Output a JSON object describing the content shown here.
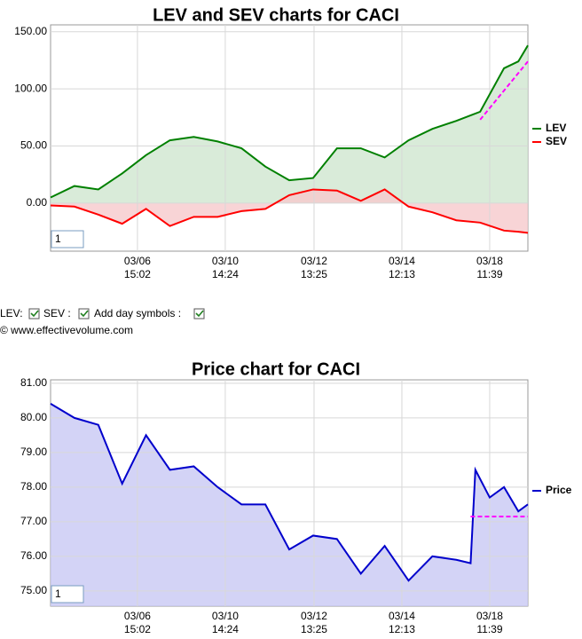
{
  "chart_data": [
    {
      "type": "line",
      "title": "LEV and SEV charts for CACI",
      "x": [
        0,
        5,
        10,
        15,
        20,
        25,
        30,
        35,
        40,
        45,
        50,
        55,
        60,
        65,
        70,
        75,
        80,
        85,
        90,
        95,
        98,
        100
      ],
      "series": [
        {
          "name": "LEV",
          "color": "#008000",
          "fill": "#cfe6cf",
          "area": true,
          "values": [
            5,
            15,
            12,
            26,
            42,
            55,
            58,
            54,
            48,
            32,
            20,
            22,
            48,
            48,
            40,
            55,
            65,
            72,
            80,
            118,
            124,
            138
          ]
        },
        {
          "name": "SEV",
          "color": "#ff0000",
          "fill": "#f6c9cc",
          "area": true,
          "values": [
            -2,
            -3,
            -10,
            -18,
            -5,
            -20,
            -12,
            -12,
            -7,
            -5,
            7,
            12,
            11,
            2,
            12,
            -3,
            -8,
            -15,
            -17,
            -24,
            -25,
            -26
          ]
        }
      ],
      "trend_line": {
        "x": [
          90,
          100
        ],
        "values": [
          73,
          124
        ],
        "color": "#ff00ff"
      },
      "xlim": [
        0,
        100
      ],
      "xticks": [
        {
          "value": 18.2,
          "label": "03/06 15:02"
        },
        {
          "value": 36.6,
          "label": "03/10 14:24"
        },
        {
          "value": 55.2,
          "label": "03/12 13:25"
        },
        {
          "value": 73.6,
          "label": "03/14 12:13"
        },
        {
          "value": 92.0,
          "label": "03/18 11:39"
        }
      ],
      "ylim": [
        -42,
        156
      ],
      "yticks": [
        {
          "value": 0,
          "label": "0.00"
        },
        {
          "value": 50,
          "label": "50.00"
        },
        {
          "value": 100,
          "label": "100.00"
        },
        {
          "value": 150,
          "label": "150.00"
        }
      ],
      "grid": true,
      "input_value": "1"
    },
    {
      "type": "line",
      "title": "Price chart for CACI",
      "x": [
        0,
        5,
        10,
        15,
        20,
        25,
        30,
        35,
        40,
        45,
        50,
        55,
        60,
        65,
        70,
        75,
        80,
        85,
        88,
        89,
        92,
        95,
        98,
        100
      ],
      "series": [
        {
          "name": "Price",
          "color": "#0000cc",
          "fill": "#c8c8f4",
          "area": true,
          "values": [
            80.41,
            80.0,
            79.8,
            78.1,
            79.5,
            78.5,
            78.6,
            78.0,
            77.5,
            77.5,
            76.2,
            76.6,
            76.5,
            75.5,
            76.3,
            75.3,
            76.0,
            75.9,
            75.8,
            78.5,
            77.7,
            78.0,
            77.3,
            77.5
          ]
        }
      ],
      "trend_line": {
        "x": [
          88,
          100
        ],
        "values": [
          77.15,
          77.15
        ],
        "color": "#ff00ff"
      },
      "xlim": [
        0,
        100
      ],
      "xticks": [
        {
          "value": 18.2,
          "label": "03/06 15:02"
        },
        {
          "value": 36.6,
          "label": "03/10 14:24"
        },
        {
          "value": 55.2,
          "label": "03/12 13:25"
        },
        {
          "value": 73.6,
          "label": "03/14 12:13"
        },
        {
          "value": 92.0,
          "label": "03/18 11:39"
        }
      ],
      "ylim": [
        74.56,
        81.1
      ],
      "yticks": [
        {
          "value": 75,
          "label": "75.00"
        },
        {
          "value": 76,
          "label": "76.00"
        },
        {
          "value": 77,
          "label": "77.00"
        },
        {
          "value": 78,
          "label": "78.00"
        },
        {
          "value": 79,
          "label": "79.00"
        },
        {
          "value": 80,
          "label": "80.00"
        },
        {
          "value": 81,
          "label": "81.00"
        }
      ],
      "grid": true,
      "input_value": "1"
    }
  ],
  "checkbox_row": [
    "LEV:",
    "SEV :",
    "Add day symbols :"
  ],
  "copyright": "© www.effectivevolume.com"
}
